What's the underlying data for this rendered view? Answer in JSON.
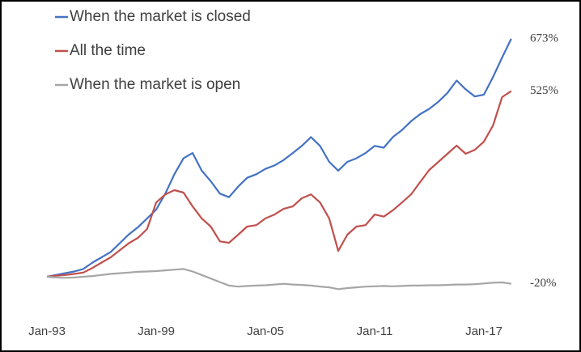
{
  "chart_data": {
    "type": "line",
    "categories": [
      "Jan-93",
      null,
      null,
      null,
      null,
      null,
      null,
      null,
      null,
      null,
      null,
      null,
      "Jan-99",
      null,
      null,
      null,
      null,
      null,
      null,
      null,
      null,
      null,
      null,
      null,
      "Jan-05",
      null,
      null,
      null,
      null,
      null,
      null,
      null,
      null,
      null,
      null,
      null,
      "Jan-11",
      null,
      null,
      null,
      null,
      null,
      null,
      null,
      null,
      null,
      null,
      null,
      "Jan-17",
      null,
      null,
      null
    ],
    "ylim": [
      -100,
      750
    ],
    "legend": "upper left",
    "series": [
      {
        "name": "When the market is closed",
        "color": "#4472c4",
        "values": [
          0,
          5,
          10,
          15,
          22,
          40,
          55,
          70,
          95,
          120,
          140,
          165,
          190,
          235,
          290,
          335,
          350,
          300,
          270,
          235,
          225,
          255,
          280,
          290,
          305,
          315,
          330,
          350,
          370,
          395,
          370,
          325,
          300,
          325,
          335,
          350,
          370,
          365,
          395,
          415,
          440,
          460,
          475,
          495,
          520,
          555,
          530,
          510,
          515,
          565,
          620,
          673
        ],
        "value_labels": [
          null,
          null,
          null,
          null,
          null,
          null,
          null,
          null,
          null,
          null,
          null,
          null,
          null,
          null,
          null,
          null,
          null,
          null,
          null,
          null,
          null,
          null,
          null,
          null,
          null,
          null,
          null,
          null,
          null,
          null,
          null,
          null,
          null,
          null,
          null,
          null,
          null,
          null,
          null,
          null,
          null,
          null,
          null,
          null,
          null,
          null,
          null,
          null,
          null,
          null,
          null,
          "673%"
        ]
      },
      {
        "name": "All the time",
        "color": "#c0504d",
        "values": [
          0,
          3,
          5,
          8,
          12,
          25,
          40,
          55,
          75,
          95,
          110,
          135,
          210,
          233,
          245,
          238,
          199,
          165,
          142,
          100,
          96,
          119,
          142,
          146,
          165,
          176,
          192,
          199,
          222,
          233,
          210,
          165,
          73,
          119,
          142,
          146,
          176,
          170,
          188,
          210,
          233,
          268,
          302,
          325,
          348,
          371,
          348,
          359,
          382,
          428,
          508,
          525
        ],
        "value_labels": [
          null,
          null,
          null,
          null,
          null,
          null,
          null,
          null,
          null,
          null,
          null,
          null,
          null,
          null,
          null,
          null,
          null,
          null,
          null,
          null,
          null,
          null,
          null,
          null,
          null,
          null,
          null,
          null,
          null,
          null,
          null,
          null,
          null,
          null,
          null,
          null,
          null,
          null,
          null,
          null,
          null,
          null,
          null,
          null,
          null,
          null,
          null,
          null,
          null,
          null,
          null,
          "525%"
        ]
      },
      {
        "name": "When the market is open",
        "color": "#a6a6a6",
        "values": [
          0,
          -2,
          -3,
          -2,
          0,
          2,
          5,
          8,
          10,
          12,
          14,
          15,
          16,
          18,
          20,
          22,
          15,
          5,
          -5,
          -15,
          -25,
          -28,
          -26,
          -25,
          -24,
          -22,
          -20,
          -22,
          -23,
          -25,
          -28,
          -30,
          -35,
          -32,
          -30,
          -28,
          -27,
          -26,
          -27,
          -26,
          -25,
          -25,
          -24,
          -24,
          -23,
          -22,
          -22,
          -21,
          -19,
          -17,
          -16,
          -20
        ],
        "value_labels": [
          null,
          null,
          null,
          null,
          null,
          null,
          null,
          null,
          null,
          null,
          null,
          null,
          null,
          null,
          null,
          null,
          null,
          null,
          null,
          null,
          null,
          null,
          null,
          null,
          null,
          null,
          null,
          null,
          null,
          null,
          null,
          null,
          null,
          null,
          null,
          null,
          null,
          null,
          null,
          null,
          null,
          null,
          null,
          null,
          null,
          null,
          null,
          null,
          null,
          null,
          null,
          "-20%"
        ]
      }
    ]
  }
}
